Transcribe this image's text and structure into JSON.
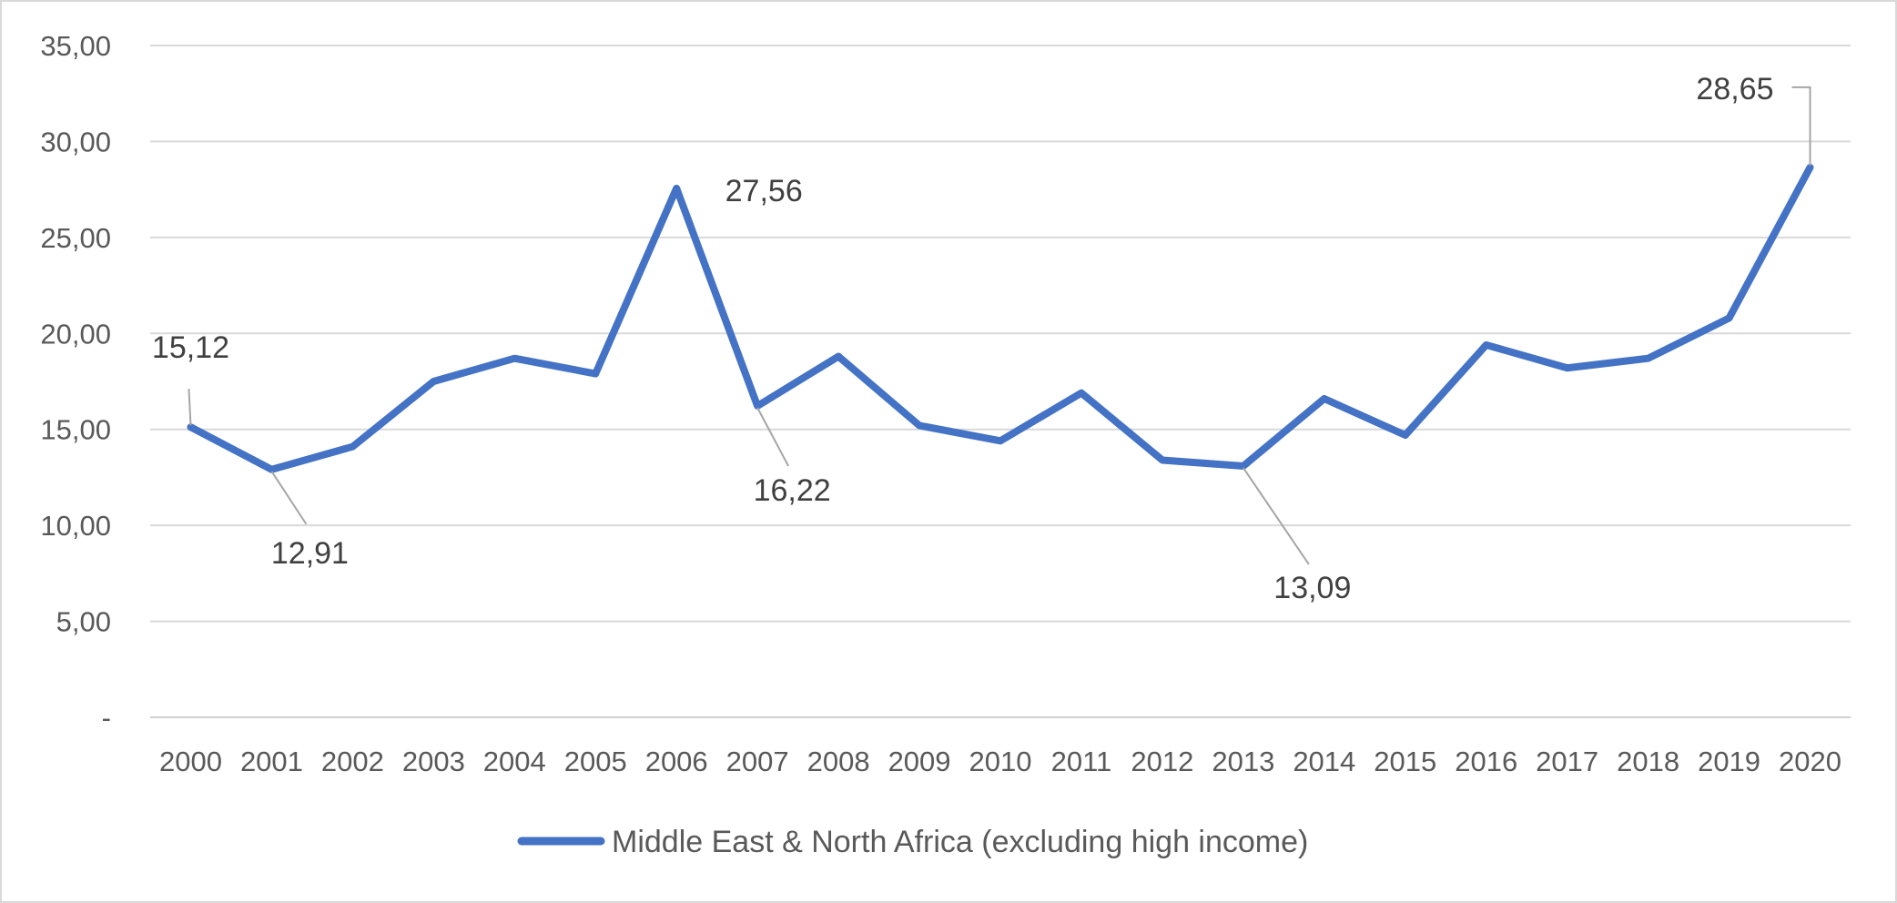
{
  "chart_data": {
    "type": "line",
    "title": "",
    "xlabel": "",
    "ylabel": "",
    "ylim": [
      0,
      35
    ],
    "y_ticks": [
      "-",
      "5,00",
      "10,00",
      "15,00",
      "20,00",
      "25,00",
      "30,00",
      "35,00"
    ],
    "grid": true,
    "legend_position": "bottom",
    "categories": [
      "2000",
      "2001",
      "2002",
      "2003",
      "2004",
      "2005",
      "2006",
      "2007",
      "2008",
      "2009",
      "2010",
      "2011",
      "2012",
      "2013",
      "2014",
      "2015",
      "2016",
      "2017",
      "2018",
      "2019",
      "2020"
    ],
    "series": [
      {
        "name": "Middle East & North Africa (excluding high income)",
        "color": "#4472c4",
        "values": [
          15.12,
          12.91,
          14.1,
          17.5,
          18.7,
          17.9,
          27.56,
          16.22,
          18.8,
          15.2,
          14.4,
          16.9,
          13.4,
          13.09,
          16.6,
          14.7,
          19.4,
          18.2,
          18.7,
          20.8,
          28.65
        ]
      }
    ],
    "data_labels": [
      {
        "index": 0,
        "text": "15,12"
      },
      {
        "index": 1,
        "text": "12,91"
      },
      {
        "index": 6,
        "text": "27,56"
      },
      {
        "index": 7,
        "text": "16,22"
      },
      {
        "index": 13,
        "text": "13,09"
      },
      {
        "index": 20,
        "text": "28,65"
      }
    ]
  }
}
